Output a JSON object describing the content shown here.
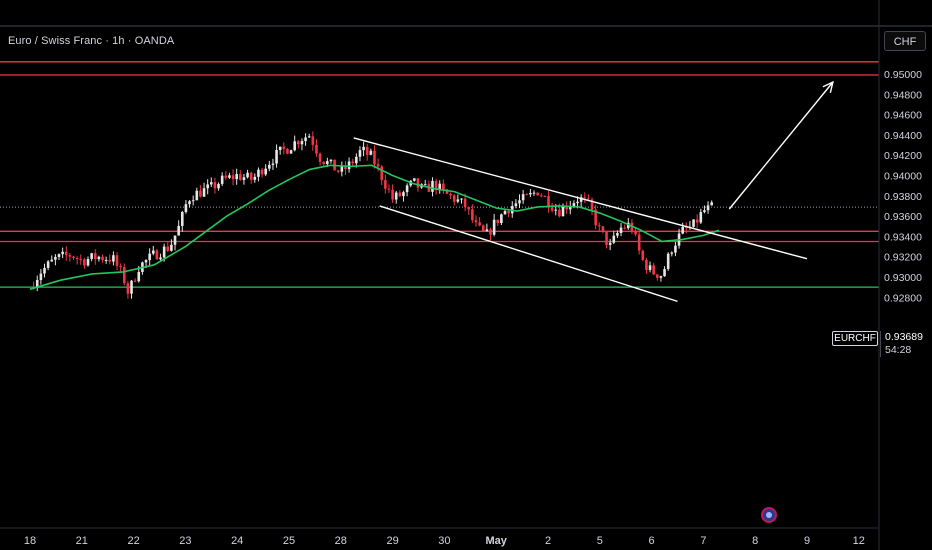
{
  "header": {
    "symbol_title": "Euro / Swiss Franc · 1h · OANDA",
    "currency_button": "CHF"
  },
  "price_tag": {
    "symbol": "EURCHF",
    "last_price": "0.93689",
    "countdown": "54:28"
  },
  "colors": {
    "background": "#000000",
    "up_candle": "#e6e6e6",
    "down_candle": "#f23645",
    "moving_average": "#22c55e",
    "resistance_lines": "#f23645",
    "support_line": "#22c55e",
    "channel_and_arrow": "#ffffff",
    "axis_text": "#d1d4dc"
  },
  "icons": {
    "ideas": "tradingview-ideas-icon"
  },
  "chart_data": {
    "type": "candlestick",
    "title": "Euro / Swiss Franc · 1h · OANDA",
    "xlabel": "",
    "ylabel": "",
    "ylim": [
      0.9272,
      0.9522
    ],
    "grid": false,
    "y_ticks": [
      "0.95000",
      "0.94800",
      "0.94600",
      "0.94400",
      "0.94200",
      "0.94000",
      "0.93800",
      "0.93600",
      "0.93400",
      "0.93200",
      "0.93000",
      "0.92800"
    ],
    "x_ticks": [
      "18",
      "21",
      "22",
      "23",
      "24",
      "25",
      "28",
      "29",
      "30",
      "May",
      "2",
      "5",
      "6",
      "7",
      "8",
      "9",
      "12"
    ],
    "x_tick_values": [
      0,
      1,
      2,
      3,
      4,
      5,
      6,
      7,
      8,
      9,
      10,
      11,
      12,
      13,
      14,
      15,
      16
    ],
    "horizontal_lines": [
      {
        "price": 0.9512,
        "color": "#f23645"
      },
      {
        "price": 0.9499,
        "color": "#f23645"
      },
      {
        "price": 0.9345,
        "color": "#f23645"
      },
      {
        "price": 0.9335,
        "color": "#f23645"
      },
      {
        "price": 0.929,
        "color": "#22c55e"
      }
    ],
    "last_price_line": 0.93689,
    "price_path": [
      [
        0.0,
        0.929
      ],
      [
        0.2,
        0.9305
      ],
      [
        0.5,
        0.9318
      ],
      [
        0.8,
        0.9322
      ],
      [
        1.0,
        0.9316
      ],
      [
        1.3,
        0.932
      ],
      [
        1.6,
        0.9318
      ],
      [
        1.8,
        0.93
      ],
      [
        1.9,
        0.9284
      ],
      [
        2.1,
        0.931
      ],
      [
        2.4,
        0.9322
      ],
      [
        2.7,
        0.933
      ],
      [
        2.9,
        0.9352
      ],
      [
        3.0,
        0.937
      ],
      [
        3.1,
        0.938
      ],
      [
        3.3,
        0.9384
      ],
      [
        3.5,
        0.9388
      ],
      [
        3.7,
        0.9395
      ],
      [
        4.0,
        0.94
      ],
      [
        4.3,
        0.9396
      ],
      [
        4.5,
        0.9408
      ],
      [
        4.8,
        0.9422
      ],
      [
        5.0,
        0.9428
      ],
      [
        5.2,
        0.9436
      ],
      [
        5.4,
        0.944
      ],
      [
        5.6,
        0.9418
      ],
      [
        5.8,
        0.941
      ],
      [
        6.0,
        0.9403
      ],
      [
        6.2,
        0.9412
      ],
      [
        6.4,
        0.9425
      ],
      [
        6.6,
        0.9418
      ],
      [
        6.8,
        0.9398
      ],
      [
        7.0,
        0.9377
      ],
      [
        7.2,
        0.9382
      ],
      [
        7.4,
        0.9393
      ],
      [
        7.6,
        0.9385
      ],
      [
        7.8,
        0.9392
      ],
      [
        8.0,
        0.9382
      ],
      [
        8.2,
        0.9377
      ],
      [
        8.4,
        0.937
      ],
      [
        8.6,
        0.935
      ],
      [
        8.8,
        0.934
      ],
      [
        9.0,
        0.9355
      ],
      [
        9.2,
        0.9367
      ],
      [
        9.4,
        0.9373
      ],
      [
        9.6,
        0.9378
      ],
      [
        9.8,
        0.9385
      ],
      [
        10.0,
        0.9375
      ],
      [
        10.2,
        0.9365
      ],
      [
        10.4,
        0.9372
      ],
      [
        10.6,
        0.9378
      ],
      [
        10.8,
        0.937
      ],
      [
        11.0,
        0.9345
      ],
      [
        11.2,
        0.933
      ],
      [
        11.4,
        0.9348
      ],
      [
        11.6,
        0.9352
      ],
      [
        11.8,
        0.9318
      ],
      [
        12.0,
        0.9305
      ],
      [
        12.2,
        0.9302
      ],
      [
        12.4,
        0.933
      ],
      [
        12.6,
        0.9345
      ],
      [
        12.8,
        0.935
      ],
      [
        13.0,
        0.9365
      ],
      [
        13.2,
        0.9369
      ]
    ],
    "moving_average": [
      [
        0.0,
        0.9288
      ],
      [
        0.6,
        0.9297
      ],
      [
        1.2,
        0.9303
      ],
      [
        1.8,
        0.9305
      ],
      [
        2.4,
        0.9312
      ],
      [
        3.0,
        0.933
      ],
      [
        3.4,
        0.9345
      ],
      [
        3.8,
        0.936
      ],
      [
        4.2,
        0.9372
      ],
      [
        4.6,
        0.9385
      ],
      [
        5.0,
        0.9396
      ],
      [
        5.4,
        0.9406
      ],
      [
        5.8,
        0.941
      ],
      [
        6.2,
        0.9409
      ],
      [
        6.6,
        0.941
      ],
      [
        7.0,
        0.94
      ],
      [
        7.4,
        0.9392
      ],
      [
        7.8,
        0.9387
      ],
      [
        8.2,
        0.9384
      ],
      [
        8.6,
        0.9376
      ],
      [
        9.0,
        0.9368
      ],
      [
        9.4,
        0.9365
      ],
      [
        9.8,
        0.9369
      ],
      [
        10.2,
        0.937
      ],
      [
        10.6,
        0.9369
      ],
      [
        11.0,
        0.9363
      ],
      [
        11.4,
        0.9355
      ],
      [
        11.8,
        0.9346
      ],
      [
        12.2,
        0.9335
      ],
      [
        12.6,
        0.9337
      ],
      [
        13.0,
        0.9341
      ],
      [
        13.3,
        0.9346
      ]
    ],
    "channel": {
      "upper": [
        [
          6.25,
          0.9437
        ],
        [
          15.0,
          0.9318
        ]
      ],
      "lower": [
        [
          6.75,
          0.937
        ],
        [
          12.5,
          0.9276
        ]
      ]
    },
    "projection_arrow": [
      [
        13.5,
        0.9367
      ],
      [
        15.5,
        0.9492
      ]
    ]
  }
}
